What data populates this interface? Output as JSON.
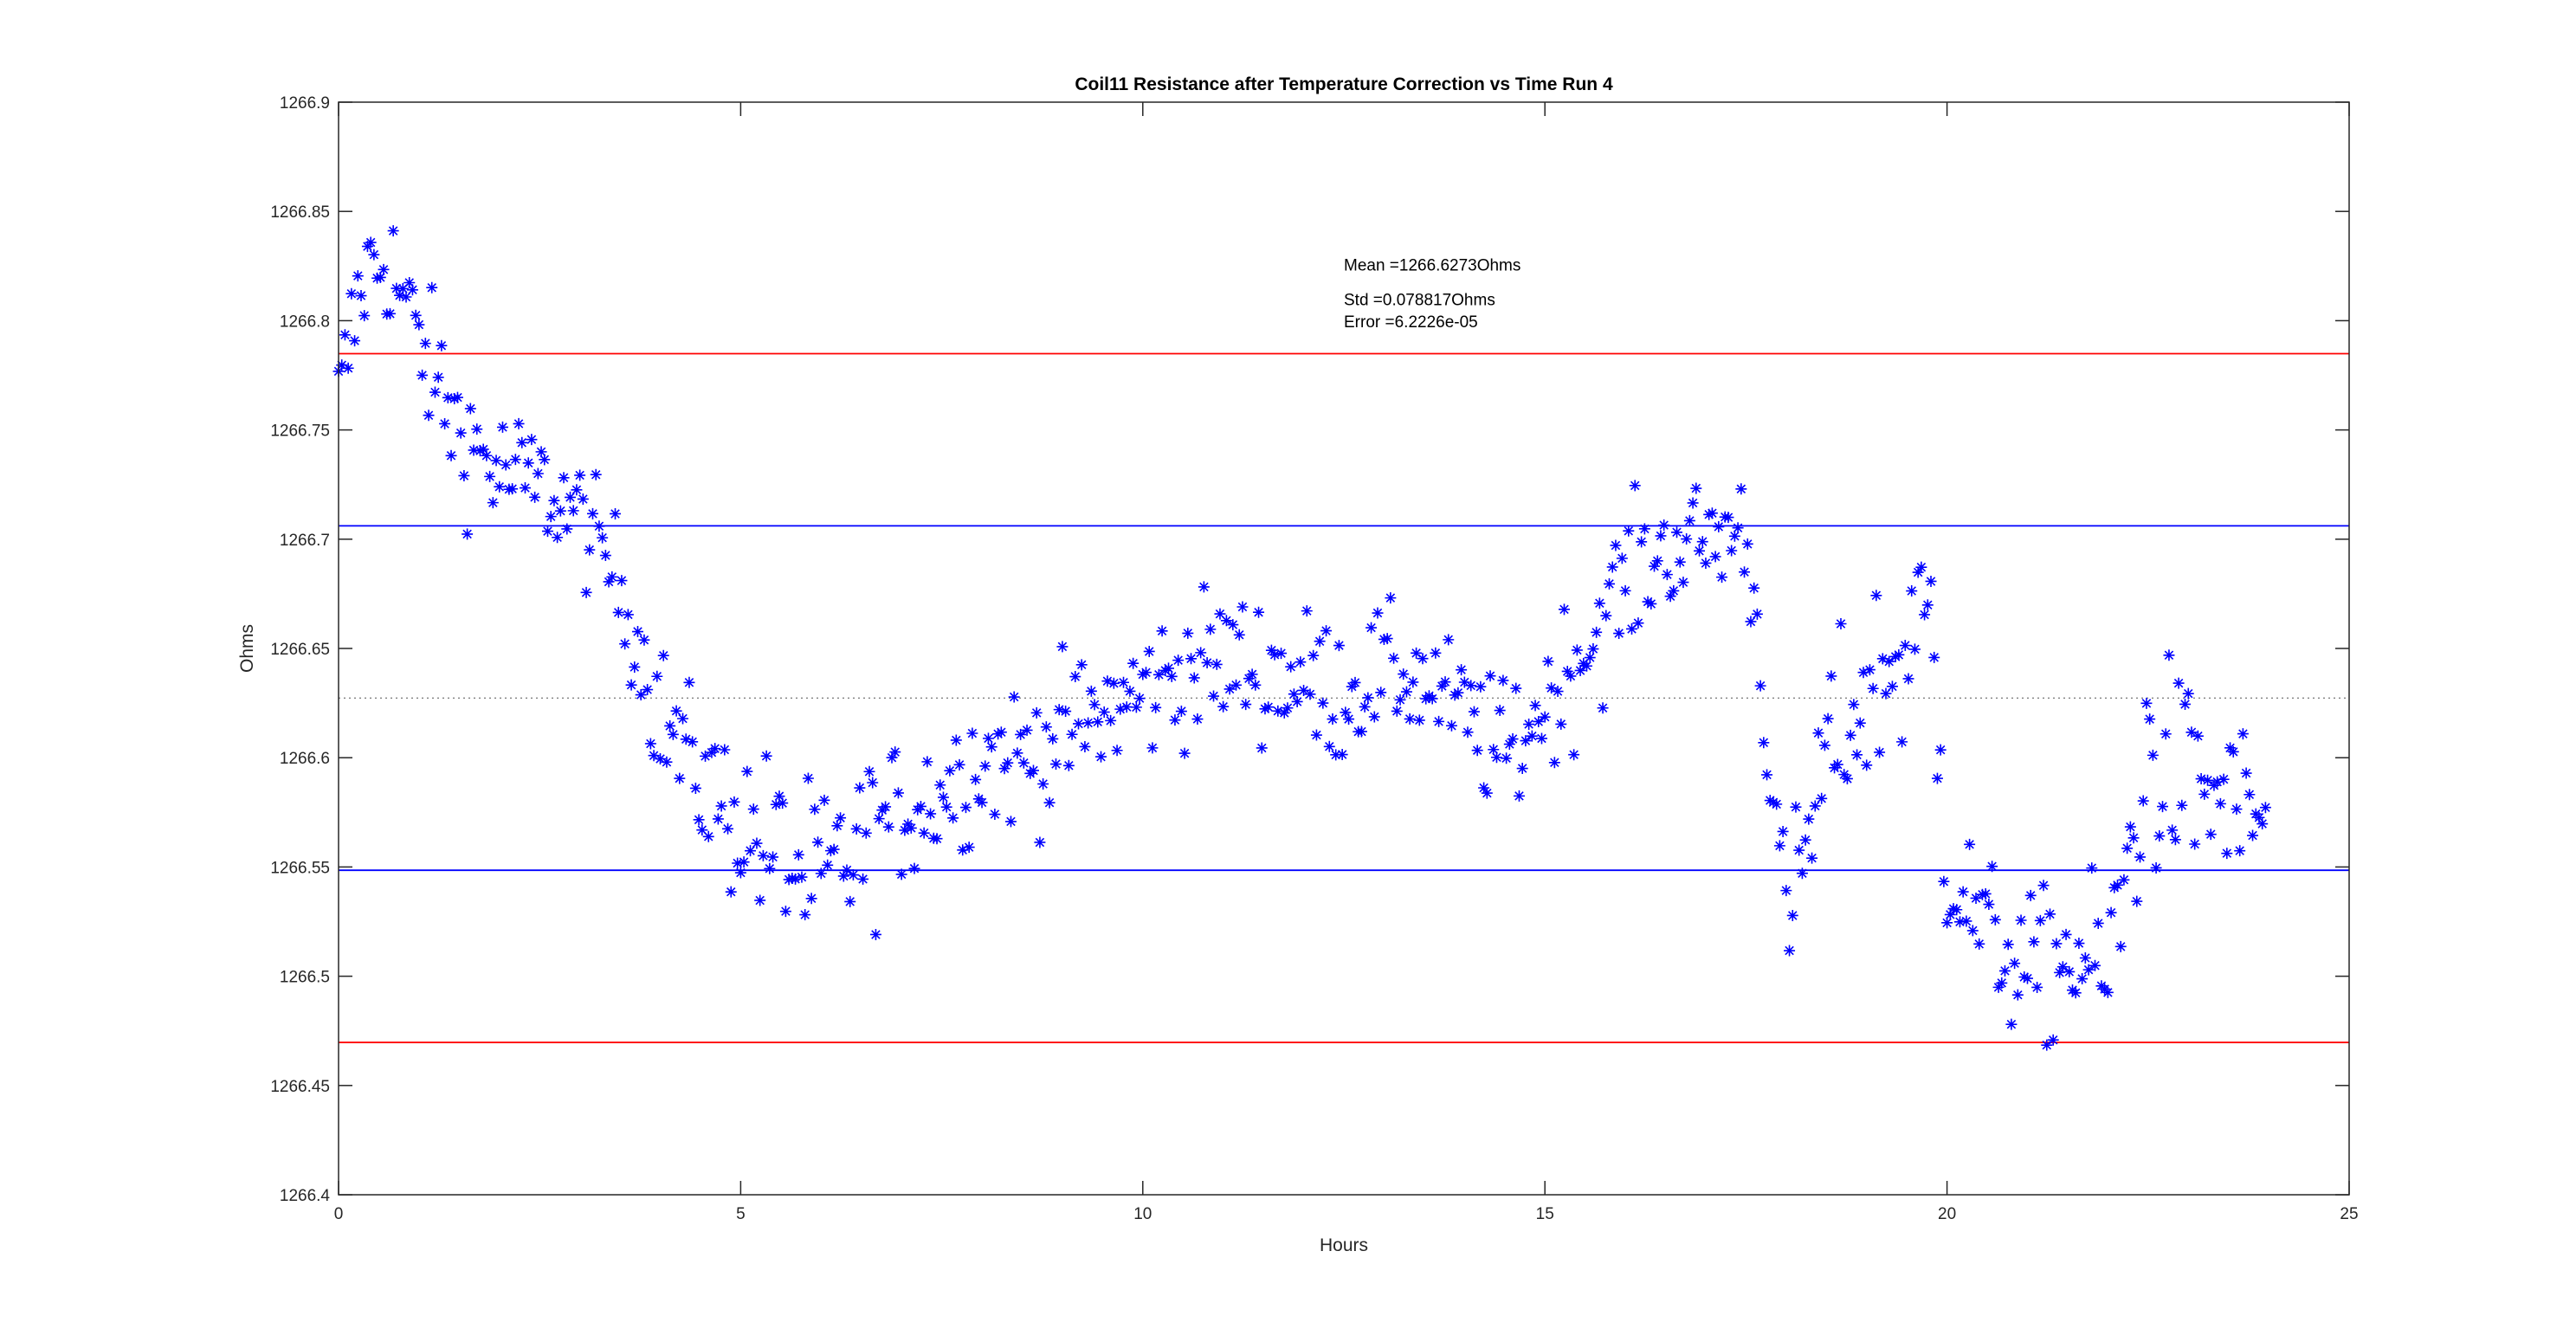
{
  "chart_data": {
    "type": "scatter",
    "title": "Coil11 Resistance after Temperature Correction vs Time Run 4",
    "xlabel": "Hours",
    "ylabel": "Ohms",
    "xlim": [
      0,
      25
    ],
    "ylim": [
      1266.4,
      1266.9
    ],
    "xticks": [
      0,
      5,
      10,
      15,
      20,
      25
    ],
    "yticks": [
      1266.4,
      1266.45,
      1266.5,
      1266.55,
      1266.6,
      1266.65,
      1266.7,
      1266.75,
      1266.8,
      1266.85,
      1266.9
    ],
    "xtick_labels": [
      "0",
      "5",
      "10",
      "15",
      "20",
      "25"
    ],
    "ytick_labels": [
      "1266.4",
      "1266.45",
      "1266.5",
      "1266.55",
      "1266.6",
      "1266.65",
      "1266.7",
      "1266.75",
      "1266.8",
      "1266.85",
      "1266.9"
    ],
    "grid": false,
    "marker": "asterisk",
    "colors": {
      "points": "#0000ff",
      "mean_line": "#808080",
      "sigma1_lines": "#0000ff",
      "sigma2_lines": "#ff0000"
    },
    "reference_lines": [
      {
        "y": 1266.7849,
        "color": "#ff0000",
        "style": "solid"
      },
      {
        "y": 1266.7061,
        "color": "#0000ff",
        "style": "solid"
      },
      {
        "y": 1266.6273,
        "color": "#808080",
        "style": "dotted"
      },
      {
        "y": 1266.5485,
        "color": "#0000ff",
        "style": "solid"
      },
      {
        "y": 1266.4697,
        "color": "#ff0000",
        "style": "solid"
      }
    ],
    "annotations": [
      {
        "text": "Mean =1266.6273Ohms",
        "x": 12.5,
        "y": 1266.823
      },
      {
        "text": "Std =0.078817Ohms",
        "x": 12.5,
        "y": 1266.807
      },
      {
        "text": "Error =6.2226e-05",
        "x": 12.5,
        "y": 1266.797
      }
    ],
    "anchors": [
      [
        0.0,
        1266.76,
        0.03
      ],
      [
        0.3,
        1266.82,
        0.03
      ],
      [
        0.6,
        1266.83,
        0.03
      ],
      [
        1.0,
        1266.79,
        0.03
      ],
      [
        1.5,
        1266.75,
        0.03
      ],
      [
        2.0,
        1266.73,
        0.03
      ],
      [
        2.5,
        1266.725,
        0.025
      ],
      [
        3.0,
        1266.71,
        0.025
      ],
      [
        3.5,
        1266.68,
        0.025
      ],
      [
        4.0,
        1266.62,
        0.03
      ],
      [
        4.5,
        1266.59,
        0.03
      ],
      [
        5.0,
        1266.57,
        0.035
      ],
      [
        5.5,
        1266.555,
        0.04
      ],
      [
        6.0,
        1266.54,
        0.04
      ],
      [
        6.5,
        1266.56,
        0.035
      ],
      [
        7.0,
        1266.575,
        0.03
      ],
      [
        7.5,
        1266.585,
        0.03
      ],
      [
        8.0,
        1266.6,
        0.03
      ],
      [
        8.5,
        1266.6,
        0.03
      ],
      [
        9.0,
        1266.61,
        0.03
      ],
      [
        9.5,
        1266.62,
        0.03
      ],
      [
        10.0,
        1266.63,
        0.03
      ],
      [
        10.5,
        1266.64,
        0.03
      ],
      [
        11.0,
        1266.645,
        0.03
      ],
      [
        11.5,
        1266.64,
        0.03
      ],
      [
        12.0,
        1266.635,
        0.03
      ],
      [
        12.5,
        1266.63,
        0.03
      ],
      [
        13.0,
        1266.64,
        0.025
      ],
      [
        13.5,
        1266.635,
        0.025
      ],
      [
        14.0,
        1266.62,
        0.025
      ],
      [
        14.5,
        1266.6,
        0.03
      ],
      [
        15.0,
        1266.625,
        0.03
      ],
      [
        15.5,
        1266.65,
        0.03
      ],
      [
        16.0,
        1266.68,
        0.03
      ],
      [
        16.5,
        1266.695,
        0.025
      ],
      [
        17.0,
        1266.7,
        0.025
      ],
      [
        17.5,
        1266.705,
        0.025
      ],
      [
        17.75,
        1266.62,
        0.03
      ],
      [
        18.0,
        1266.52,
        0.03
      ],
      [
        18.5,
        1266.6,
        0.04
      ],
      [
        19.0,
        1266.63,
        0.04
      ],
      [
        19.5,
        1266.65,
        0.05
      ],
      [
        19.8,
        1266.66,
        0.05
      ],
      [
        20.0,
        1266.55,
        0.03
      ],
      [
        20.5,
        1266.52,
        0.03
      ],
      [
        21.0,
        1266.5,
        0.03
      ],
      [
        21.5,
        1266.51,
        0.035
      ],
      [
        22.0,
        1266.5,
        0.04
      ],
      [
        22.5,
        1266.6,
        0.05
      ],
      [
        23.0,
        1266.59,
        0.04
      ],
      [
        23.5,
        1266.58,
        0.035
      ],
      [
        24.0,
        1266.57,
        0.03
      ]
    ],
    "sample_interval_hours": 0.04,
    "sample_count": 600
  }
}
